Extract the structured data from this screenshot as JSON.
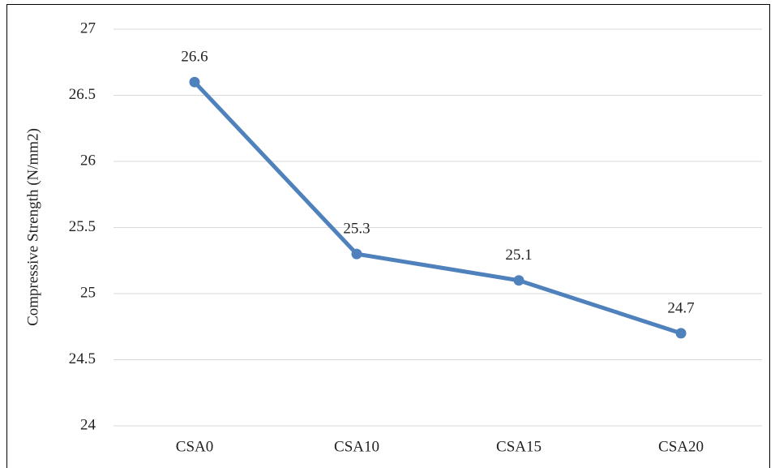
{
  "chart_data": {
    "type": "line",
    "y_label": "Compressive Strength (N/mm2)",
    "categories": [
      "CSA0",
      "CSA10",
      "CSA15",
      "CSA20"
    ],
    "values": [
      26.6,
      25.3,
      25.1,
      24.7
    ],
    "color": "#4f81bd",
    "ylim": [
      24,
      27
    ],
    "yticks": [
      24,
      24.5,
      25,
      25.5,
      26,
      26.5,
      27
    ],
    "grid": true,
    "data_labels": true
  }
}
